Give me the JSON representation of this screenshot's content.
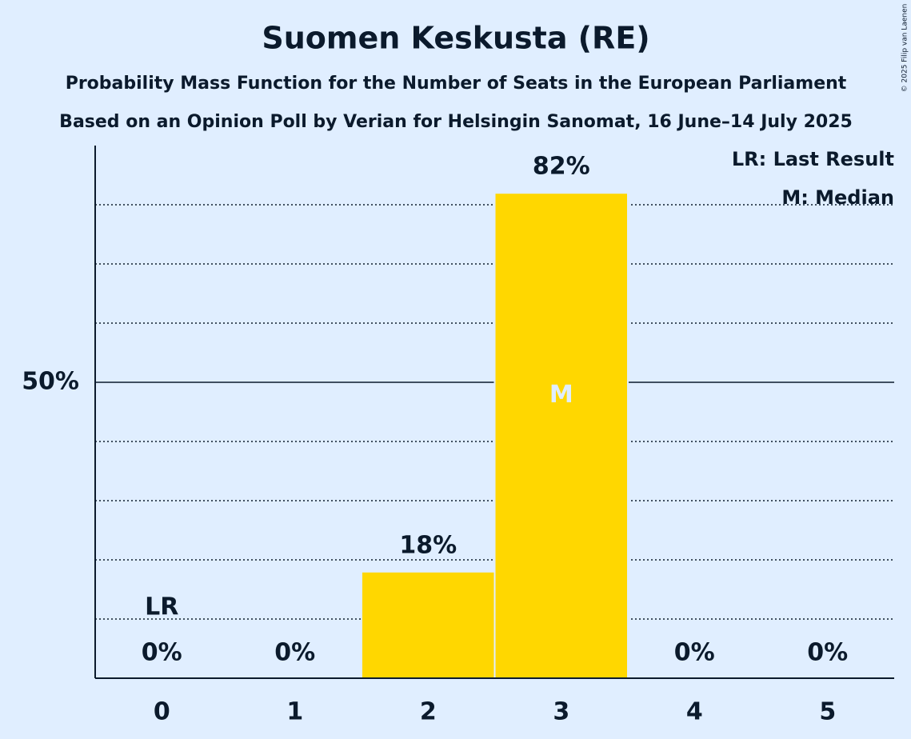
{
  "chart_data": {
    "type": "bar",
    "title": "Suomen Keskusta (RE)",
    "subtitle": "Probability Mass Function for the Number of Seats in the European Parliament",
    "subtitle2": "Based on an Opinion Poll by Verian for Helsingin Sanomat, 16 June–14 July 2025",
    "copyright": "© 2025 Filip van Laenen",
    "categories": [
      "0",
      "1",
      "2",
      "3",
      "4",
      "5"
    ],
    "values": [
      0,
      0,
      18,
      82,
      0,
      0
    ],
    "value_labels": [
      "0%",
      "0%",
      "18%",
      "82%",
      "0%",
      "0%"
    ],
    "color": "#ffd700",
    "ylim": [
      0,
      90
    ],
    "yticks": [
      {
        "value": 50,
        "label": "50%"
      }
    ],
    "minor_yticks": [
      10,
      20,
      30,
      40,
      60,
      70,
      80
    ],
    "grid": true,
    "last_result": {
      "index": 0,
      "label": "LR"
    },
    "median": {
      "index": 3,
      "label": "M"
    },
    "legend": [
      "LR: Last Result",
      "M: Median"
    ],
    "legend_position": "top-right"
  }
}
